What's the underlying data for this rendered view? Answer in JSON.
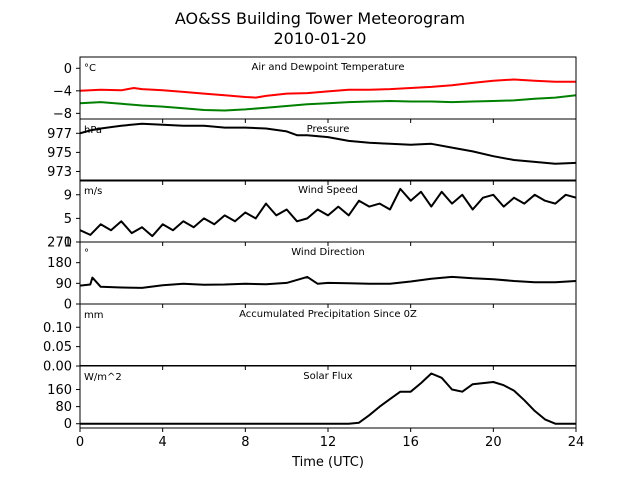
{
  "title_line1": "AO&SS Building Tower Meteorogram",
  "title_line2": "2010-01-20",
  "xlabel": "Time (UTC)",
  "x_ticks": [
    "0",
    "4",
    "8",
    "12",
    "16",
    "20",
    "24"
  ],
  "chart_data": [
    {
      "type": "line",
      "title": "Air and Dewpoint Temperature",
      "unit": "°C",
      "ylim": [
        -9,
        2
      ],
      "yticks": [
        0,
        -4,
        -8
      ],
      "ytick_labels": [
        "0",
        "−4",
        "−8"
      ],
      "series": [
        {
          "color": "#ff0000",
          "x": [
            0,
            1,
            2,
            2.6,
            3,
            4,
            5,
            6,
            7,
            8,
            8.5,
            9,
            10,
            11,
            12,
            13,
            14,
            15,
            16,
            17,
            18,
            19,
            20,
            21,
            22,
            23,
            24
          ],
          "y": [
            -4.0,
            -3.8,
            -3.9,
            -3.5,
            -3.7,
            -3.9,
            -4.2,
            -4.5,
            -4.8,
            -5.1,
            -5.2,
            -4.9,
            -4.5,
            -4.4,
            -4.1,
            -3.8,
            -3.8,
            -3.7,
            -3.5,
            -3.3,
            -3.0,
            -2.6,
            -2.2,
            -2.0,
            -2.2,
            -2.4,
            -2.4
          ]
        },
        {
          "color": "#008000",
          "x": [
            0,
            1,
            2,
            3,
            4,
            5,
            6,
            7,
            8,
            9,
            10,
            11,
            12,
            13,
            14,
            15,
            16,
            17,
            18,
            19,
            20,
            21,
            22,
            23,
            24
          ],
          "y": [
            -6.2,
            -6.0,
            -6.3,
            -6.6,
            -6.8,
            -7.1,
            -7.4,
            -7.5,
            -7.3,
            -7.0,
            -6.7,
            -6.4,
            -6.2,
            -6.0,
            -5.9,
            -5.8,
            -5.9,
            -5.9,
            -6.0,
            -5.9,
            -5.8,
            -5.7,
            -5.4,
            -5.2,
            -4.8
          ]
        }
      ]
    },
    {
      "type": "line",
      "title": "Pressure",
      "unit": "hPa",
      "ylim": [
        972,
        978.5
      ],
      "yticks": [
        977,
        975,
        973
      ],
      "ytick_labels": [
        "977",
        "975",
        "973"
      ],
      "series": [
        {
          "color": "#000000",
          "x": [
            0,
            0.5,
            1,
            2,
            3,
            4,
            5,
            6,
            7,
            8,
            9,
            10,
            10.5,
            11,
            12,
            13,
            14,
            15,
            16,
            17,
            18,
            19,
            20,
            21,
            22,
            23,
            24
          ],
          "y": [
            977.0,
            977.3,
            977.5,
            977.8,
            978.0,
            977.9,
            977.8,
            977.8,
            977.6,
            977.6,
            977.5,
            977.2,
            976.8,
            976.8,
            976.6,
            976.2,
            976.0,
            975.9,
            975.8,
            975.9,
            975.5,
            975.1,
            974.6,
            974.2,
            974.0,
            973.8,
            973.9
          ]
        }
      ]
    },
    {
      "type": "line",
      "title": "Wind Speed",
      "unit": "m/s",
      "ylim": [
        1,
        11.5
      ],
      "yticks": [
        9,
        5,
        1
      ],
      "ytick_labels": [
        "9",
        "5",
        "1"
      ],
      "series": [
        {
          "color": "#000000",
          "x": [
            0,
            0.5,
            1,
            1.5,
            2,
            2.5,
            3,
            3.5,
            4,
            4.5,
            5,
            5.5,
            6,
            6.5,
            7,
            7.5,
            8,
            8.5,
            9,
            9.5,
            10,
            10.5,
            11,
            11.5,
            12,
            12.5,
            13,
            13.5,
            14,
            14.5,
            15,
            15.5,
            16,
            16.5,
            17,
            17.5,
            18,
            18.5,
            19,
            19.5,
            20,
            20.5,
            21,
            21.5,
            22,
            22.5,
            23,
            23.5,
            24
          ],
          "y": [
            3,
            2.2,
            4,
            3,
            4.5,
            2.5,
            3.5,
            2,
            4,
            3,
            4.5,
            3.5,
            5,
            4,
            5.5,
            4.5,
            6,
            5,
            7.5,
            5.5,
            6.5,
            4.5,
            5,
            6.5,
            5.5,
            7,
            5.5,
            8,
            7,
            7.5,
            6.5,
            10,
            8,
            9.5,
            7,
            9.5,
            7.5,
            9,
            6.5,
            8.5,
            9,
            7,
            8.5,
            7.5,
            9,
            8,
            7.5,
            9,
            8.5
          ]
        }
      ]
    },
    {
      "type": "line",
      "title": "Wind Direction",
      "unit": "°",
      "ylim": [
        0,
        270
      ],
      "yticks": [
        270,
        180,
        90,
        0
      ],
      "ytick_labels": [
        "270",
        "180",
        "90",
        "0"
      ],
      "series": [
        {
          "color": "#000000",
          "x": [
            0,
            0.5,
            0.6,
            1,
            2,
            3,
            4,
            5,
            6,
            7,
            8,
            9,
            10,
            11,
            11.5,
            12,
            13,
            14,
            15,
            16,
            17,
            18,
            19,
            20,
            21,
            22,
            23,
            24
          ],
          "y": [
            80,
            85,
            115,
            75,
            72,
            70,
            82,
            88,
            84,
            85,
            88,
            86,
            92,
            118,
            88,
            92,
            90,
            88,
            88,
            98,
            110,
            118,
            112,
            108,
            100,
            95,
            95,
            100
          ]
        }
      ]
    },
    {
      "type": "line",
      "title": "Accumulated Precipitation Since 0Z",
      "unit": "mm",
      "ylim": [
        0,
        0.16
      ],
      "yticks": [
        0.1,
        0.05,
        0.0
      ],
      "ytick_labels": [
        "0.10",
        "0.05",
        "0.00"
      ],
      "series": [
        {
          "color": "#000000",
          "x": [
            0,
            24
          ],
          "y": [
            0,
            0
          ]
        }
      ]
    },
    {
      "type": "line",
      "title": "Solar Flux",
      "unit": "W/m^2",
      "ylim": [
        -20,
        270
      ],
      "yticks": [
        160,
        80,
        0
      ],
      "ytick_labels": [
        "160",
        "80",
        "0"
      ],
      "series": [
        {
          "color": "#000000",
          "x": [
            0,
            13,
            13.5,
            14,
            14.5,
            15,
            15.5,
            16,
            16.5,
            17,
            17.5,
            18,
            18.5,
            19,
            19.5,
            20,
            20.5,
            21,
            21.5,
            22,
            22.5,
            23,
            24
          ],
          "y": [
            0,
            0,
            5,
            40,
            80,
            115,
            150,
            150,
            190,
            235,
            215,
            160,
            150,
            185,
            190,
            195,
            180,
            155,
            110,
            60,
            20,
            0,
            0
          ]
        }
      ]
    }
  ]
}
